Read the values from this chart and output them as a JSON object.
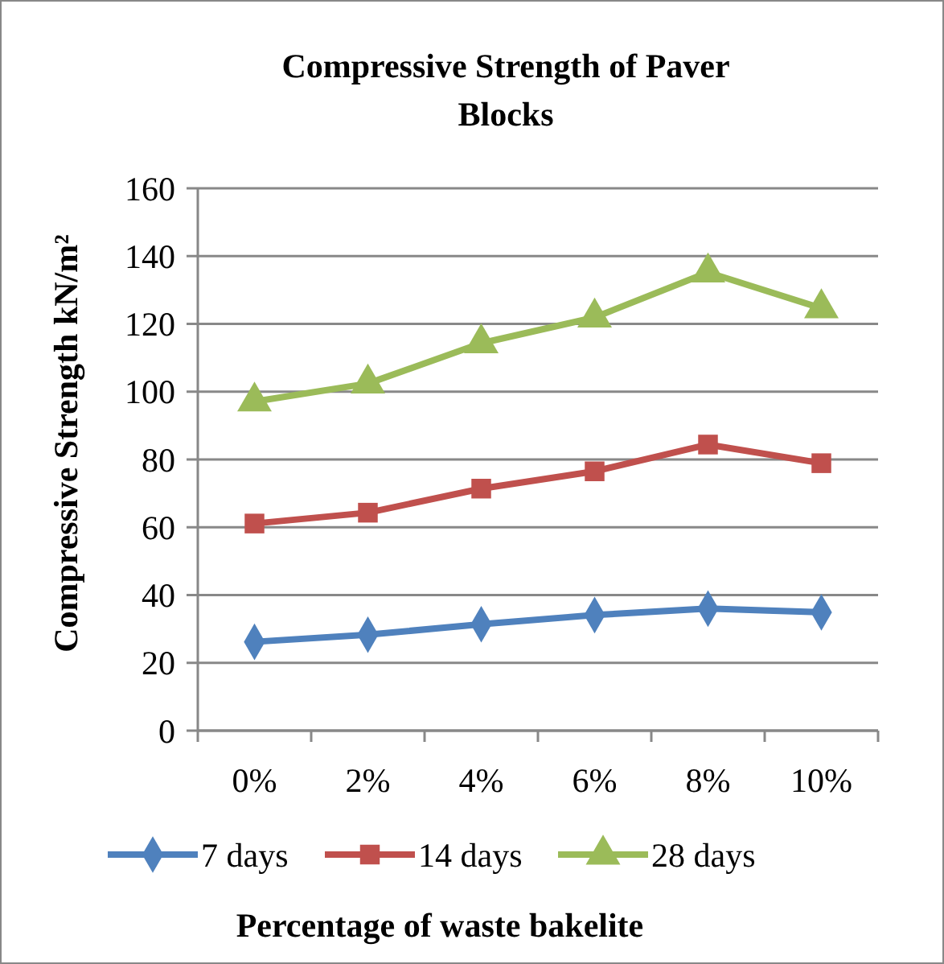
{
  "chart_data": {
    "type": "line",
    "title": "Compressive Strength of Paver Blocks",
    "xlabel": "Percentage of waste bakelite",
    "ylabel": "Compressive Strength kN/m²",
    "categories": [
      "0%",
      "2%",
      "4%",
      "6%",
      "8%",
      "10%"
    ],
    "series": [
      {
        "name": "7 days",
        "color": "#4f81bd",
        "marker": "diamond",
        "values": [
          26.2,
          28.3,
          31.4,
          34.1,
          36.0,
          34.9
        ]
      },
      {
        "name": "14 days",
        "color": "#c0504d",
        "marker": "square",
        "values": [
          61.1,
          64.3,
          71.4,
          76.5,
          84.4,
          78.9
        ]
      },
      {
        "name": "28 days",
        "color": "#9bbb59",
        "marker": "triangle",
        "values": [
          97.1,
          102.4,
          114.3,
          121.9,
          135.2,
          124.6
        ]
      }
    ],
    "ylim": [
      0,
      160
    ],
    "yticks": [
      0,
      20,
      40,
      60,
      80,
      100,
      120,
      140,
      160
    ],
    "grid": "y",
    "legend": "bottom"
  }
}
